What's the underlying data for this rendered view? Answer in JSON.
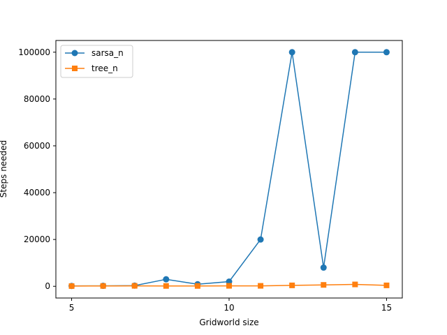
{
  "chart_data": {
    "type": "line",
    "title": "",
    "xlabel": "Gridworld size",
    "ylabel": "Steps needed",
    "x": [
      5,
      6,
      7,
      8,
      9,
      10,
      11,
      12,
      13,
      14,
      15
    ],
    "xlim": [
      4.5,
      15.5
    ],
    "ylim": [
      -5000,
      105000
    ],
    "xticks": [
      5,
      10,
      15
    ],
    "yticks": [
      0,
      20000,
      40000,
      60000,
      80000,
      100000
    ],
    "grid": false,
    "legend_position": "top-left",
    "series": [
      {
        "name": "sarsa_n",
        "color": "#1f77b4",
        "marker": "circle",
        "values": [
          150,
          200,
          300,
          3000,
          900,
          2000,
          20000,
          100000,
          8000,
          100000,
          100000
        ]
      },
      {
        "name": "tree_n",
        "color": "#ff7f0e",
        "marker": "square",
        "values": [
          100,
          150,
          200,
          150,
          150,
          200,
          200,
          400,
          600,
          800,
          400
        ]
      }
    ]
  }
}
